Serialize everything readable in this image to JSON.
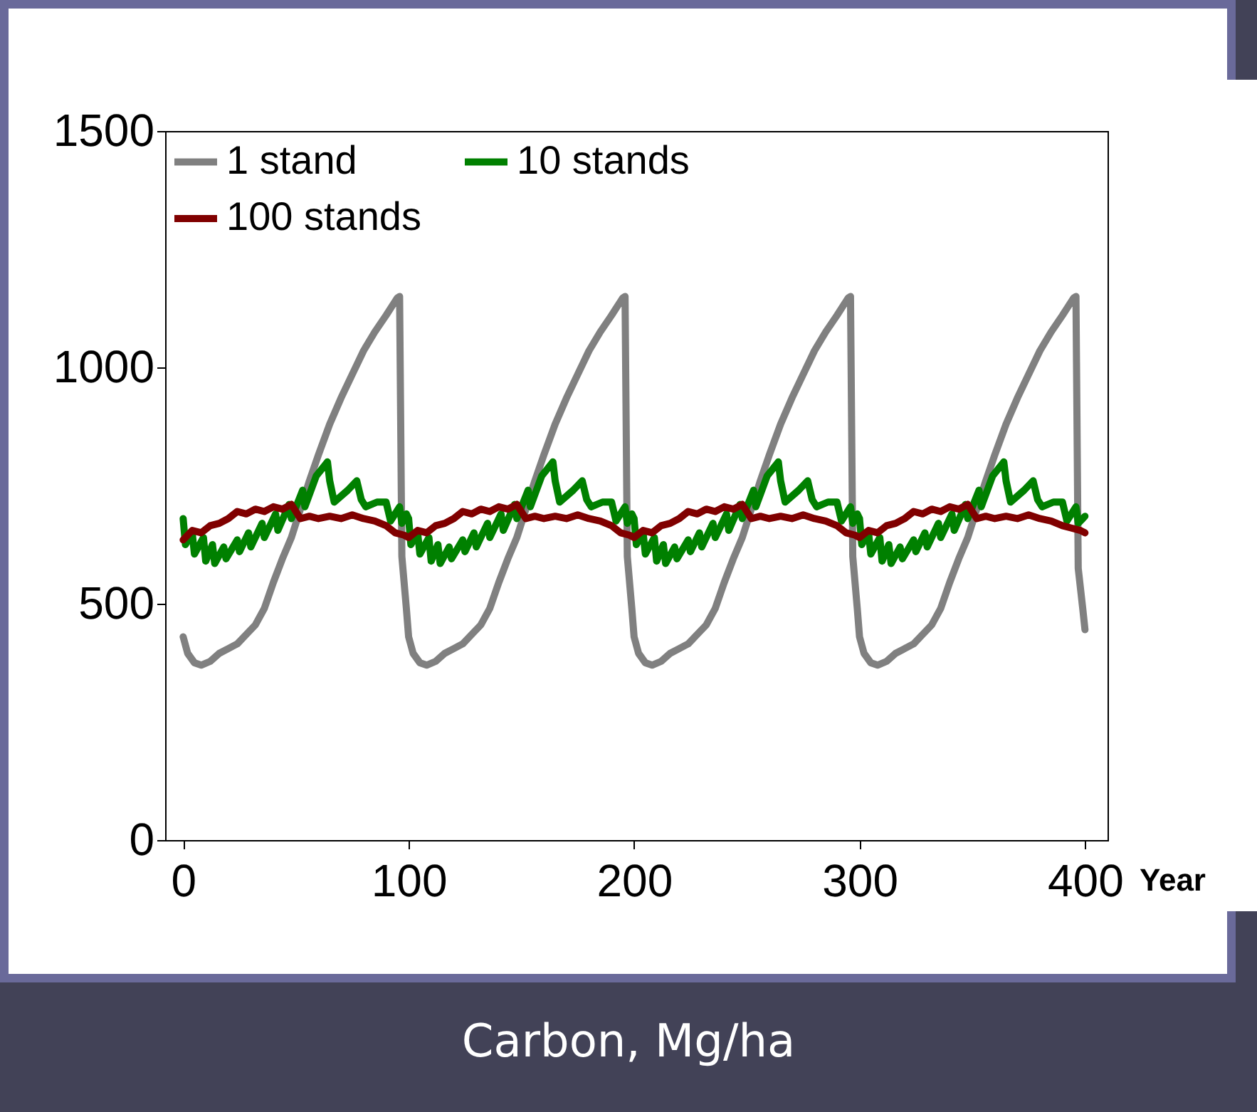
{
  "chart_data": {
    "type": "line",
    "xlabel": "Year",
    "annotations": [
      "Carbon, Mg/ha"
    ],
    "xlim": [
      -8,
      410
    ],
    "ylim": [
      0,
      1500
    ],
    "xticks": [
      0,
      100,
      200,
      300,
      400
    ],
    "yticks": [
      0,
      500,
      1000,
      1500
    ],
    "legend": "top left",
    "line_style": "solid",
    "series": [
      {
        "name": "1 stand",
        "color": "#808080",
        "x": [
          0,
          2,
          5,
          8,
          12,
          16,
          20,
          24,
          28,
          32,
          36,
          40,
          44,
          48,
          52,
          56,
          60,
          65,
          70,
          75,
          80,
          85,
          90,
          95,
          96,
          97,
          99,
          100,
          102,
          105,
          108,
          112,
          116,
          120,
          124,
          128,
          132,
          136,
          140,
          144,
          148,
          152,
          156,
          160,
          165,
          170,
          175,
          180,
          185,
          190,
          195,
          196,
          197,
          199,
          200,
          202,
          205,
          208,
          212,
          216,
          220,
          224,
          228,
          232,
          236,
          240,
          244,
          248,
          252,
          256,
          260,
          265,
          270,
          275,
          280,
          285,
          290,
          295,
          296,
          297,
          299,
          300,
          302,
          305,
          308,
          312,
          316,
          320,
          324,
          328,
          332,
          336,
          340,
          344,
          348,
          352,
          356,
          360,
          365,
          370,
          375,
          380,
          385,
          390,
          395,
          396,
          397,
          399,
          400
        ],
        "values": [
          430,
          395,
          375,
          370,
          378,
          395,
          405,
          415,
          435,
          455,
          490,
          545,
          595,
          640,
          700,
          760,
          815,
          880,
          935,
          985,
          1035,
          1075,
          1110,
          1147,
          1150,
          600,
          490,
          430,
          395,
          375,
          370,
          378,
          395,
          405,
          415,
          435,
          455,
          490,
          545,
          595,
          640,
          700,
          760,
          815,
          880,
          935,
          985,
          1035,
          1075,
          1110,
          1147,
          1150,
          600,
          490,
          430,
          395,
          375,
          370,
          378,
          395,
          405,
          415,
          435,
          455,
          490,
          545,
          595,
          640,
          700,
          760,
          815,
          880,
          935,
          985,
          1035,
          1075,
          1110,
          1147,
          1150,
          600,
          490,
          430,
          395,
          375,
          370,
          378,
          395,
          405,
          415,
          435,
          455,
          490,
          545,
          595,
          640,
          700,
          760,
          815,
          880,
          935,
          985,
          1035,
          1075,
          1110,
          1147,
          1150,
          575,
          490,
          445
        ]
      },
      {
        "name": "10 stands",
        "color": "#008000",
        "x": [
          0,
          1,
          4,
          5,
          9,
          10,
          13,
          14,
          18,
          19,
          24,
          25,
          29,
          30,
          35,
          36,
          41,
          42,
          47,
          48,
          53,
          54,
          59,
          64,
          65,
          67,
          73,
          77,
          79,
          81,
          86,
          90,
          92,
          96,
          97,
          99,
          100,
          101,
          104,
          105,
          109,
          110,
          113,
          114,
          118,
          119,
          124,
          125,
          129,
          130,
          135,
          136,
          141,
          142,
          147,
          148,
          153,
          154,
          159,
          164,
          165,
          167,
          173,
          177,
          179,
          181,
          186,
          190,
          192,
          196,
          197,
          199,
          200,
          201,
          204,
          205,
          209,
          210,
          213,
          214,
          218,
          219,
          224,
          225,
          229,
          230,
          235,
          236,
          241,
          242,
          247,
          248,
          253,
          254,
          259,
          264,
          265,
          267,
          273,
          277,
          279,
          281,
          286,
          290,
          292,
          296,
          297,
          299,
          300,
          301,
          304,
          305,
          309,
          310,
          313,
          314,
          318,
          319,
          324,
          325,
          329,
          330,
          335,
          336,
          341,
          342,
          347,
          348,
          353,
          354,
          359,
          364,
          365,
          367,
          373,
          377,
          379,
          381,
          386,
          390,
          392,
          396,
          397,
          400
        ],
        "values": [
          680,
          625,
          650,
          605,
          640,
          590,
          625,
          585,
          620,
          595,
          635,
          610,
          650,
          620,
          670,
          640,
          690,
          655,
          710,
          680,
          740,
          705,
          770,
          800,
          760,
          715,
          740,
          760,
          720,
          705,
          715,
          715,
          675,
          705,
          670,
          690,
          680,
          625,
          650,
          605,
          640,
          590,
          625,
          585,
          620,
          595,
          635,
          610,
          650,
          620,
          670,
          640,
          690,
          655,
          710,
          680,
          740,
          705,
          770,
          800,
          760,
          715,
          740,
          760,
          720,
          705,
          715,
          715,
          675,
          705,
          670,
          690,
          680,
          625,
          650,
          605,
          640,
          590,
          625,
          585,
          620,
          595,
          635,
          610,
          650,
          620,
          670,
          640,
          690,
          655,
          710,
          680,
          740,
          705,
          770,
          800,
          760,
          715,
          740,
          760,
          720,
          705,
          715,
          715,
          675,
          705,
          670,
          690,
          680,
          625,
          650,
          605,
          640,
          590,
          625,
          585,
          620,
          595,
          635,
          610,
          650,
          620,
          670,
          640,
          690,
          655,
          710,
          680,
          740,
          705,
          770,
          800,
          760,
          715,
          740,
          760,
          720,
          705,
          715,
          715,
          675,
          705,
          670,
          685
        ]
      },
      {
        "name": "100 stands",
        "color": "#800000",
        "x": [
          0,
          4,
          8,
          12,
          16,
          20,
          24,
          28,
          32,
          36,
          40,
          44,
          48,
          52,
          56,
          60,
          65,
          70,
          75,
          80,
          85,
          90,
          94,
          98,
          100,
          104,
          108,
          112,
          116,
          120,
          124,
          128,
          132,
          136,
          140,
          144,
          148,
          152,
          156,
          160,
          165,
          170,
          175,
          180,
          185,
          190,
          194,
          198,
          200,
          204,
          208,
          212,
          216,
          220,
          224,
          228,
          232,
          236,
          240,
          244,
          248,
          252,
          256,
          260,
          265,
          270,
          275,
          280,
          285,
          290,
          294,
          298,
          300,
          304,
          308,
          312,
          316,
          320,
          324,
          328,
          332,
          336,
          340,
          344,
          348,
          352,
          356,
          360,
          365,
          370,
          375,
          380,
          385,
          390,
          394,
          398,
          400
        ],
        "values": [
          635,
          655,
          650,
          665,
          670,
          680,
          695,
          690,
          700,
          695,
          705,
          700,
          710,
          680,
          685,
          680,
          685,
          680,
          688,
          680,
          675,
          665,
          650,
          645,
          640,
          655,
          650,
          665,
          670,
          680,
          695,
          690,
          700,
          695,
          705,
          700,
          710,
          680,
          685,
          680,
          685,
          680,
          688,
          680,
          675,
          665,
          650,
          645,
          640,
          655,
          650,
          665,
          670,
          680,
          695,
          690,
          700,
          695,
          705,
          700,
          710,
          680,
          685,
          680,
          685,
          680,
          688,
          680,
          675,
          665,
          650,
          645,
          640,
          655,
          650,
          665,
          670,
          680,
          695,
          690,
          700,
          695,
          705,
          700,
          710,
          680,
          685,
          680,
          685,
          680,
          688,
          680,
          675,
          665,
          660,
          655,
          650
        ]
      }
    ]
  }
}
